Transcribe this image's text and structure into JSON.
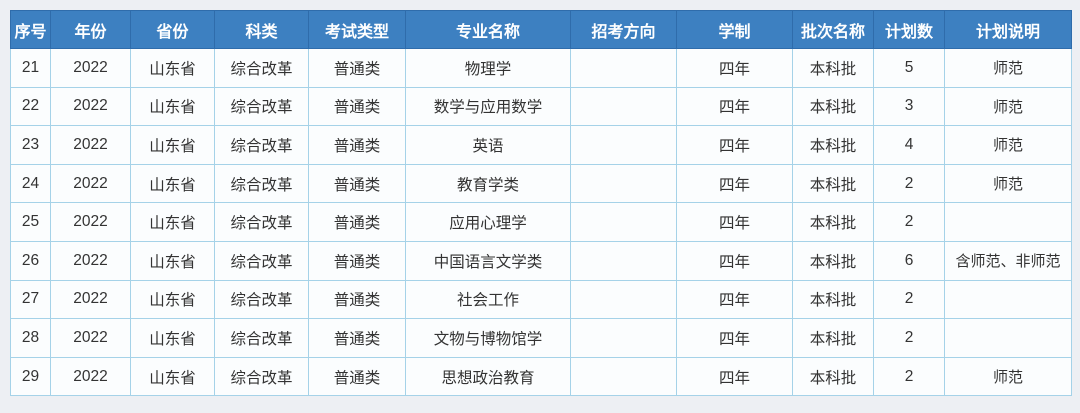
{
  "table": {
    "headers": [
      "序号",
      "年份",
      "省份",
      "科类",
      "考试类型",
      "专业名称",
      "招考方向",
      "学制",
      "批次名称",
      "计划数",
      "计划说明"
    ],
    "rows": [
      [
        "21",
        "2022",
        "山东省",
        "综合改革",
        "普通类",
        "物理学",
        "",
        "四年",
        "本科批",
        "5",
        "师范"
      ],
      [
        "22",
        "2022",
        "山东省",
        "综合改革",
        "普通类",
        "数学与应用数学",
        "",
        "四年",
        "本科批",
        "3",
        "师范"
      ],
      [
        "23",
        "2022",
        "山东省",
        "综合改革",
        "普通类",
        "英语",
        "",
        "四年",
        "本科批",
        "4",
        "师范"
      ],
      [
        "24",
        "2022",
        "山东省",
        "综合改革",
        "普通类",
        "教育学类",
        "",
        "四年",
        "本科批",
        "2",
        "师范"
      ],
      [
        "25",
        "2022",
        "山东省",
        "综合改革",
        "普通类",
        "应用心理学",
        "",
        "四年",
        "本科批",
        "2",
        ""
      ],
      [
        "26",
        "2022",
        "山东省",
        "综合改革",
        "普通类",
        "中国语言文学类",
        "",
        "四年",
        "本科批",
        "6",
        "含师范、非师范"
      ],
      [
        "27",
        "2022",
        "山东省",
        "综合改革",
        "普通类",
        "社会工作",
        "",
        "四年",
        "本科批",
        "2",
        ""
      ],
      [
        "28",
        "2022",
        "山东省",
        "综合改革",
        "普通类",
        "文物与博物馆学",
        "",
        "四年",
        "本科批",
        "2",
        ""
      ],
      [
        "29",
        "2022",
        "山东省",
        "综合改革",
        "普通类",
        "思想政治教育",
        "",
        "四年",
        "本科批",
        "2",
        "师范"
      ]
    ]
  },
  "colors": {
    "header_background": "#3d80c1",
    "header_text": "#ffffff",
    "header_border": "#2f6cab",
    "cell_background": "#fbfdfe",
    "cell_border": "#a5d2e8",
    "cell_text": "#333333",
    "page_background": "#edeff3"
  }
}
